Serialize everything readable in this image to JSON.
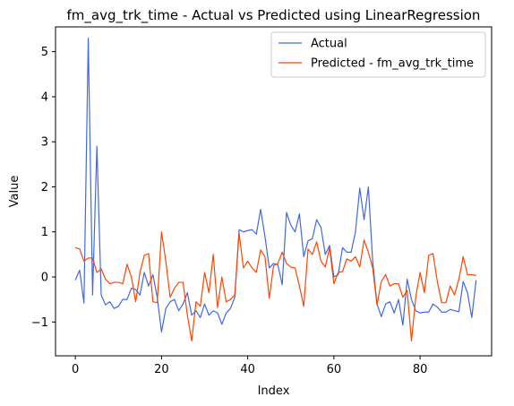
{
  "chart_data": {
    "type": "line",
    "title": "fm_avg_trk_time - Actual vs Predicted using LinearRegression",
    "xlabel": "Index",
    "ylabel": "Value",
    "xlim": [
      -4.6,
      96.6
    ],
    "ylim": [
      -1.75,
      5.55
    ],
    "xticks": [
      0,
      20,
      40,
      60,
      80
    ],
    "yticks": [
      -1,
      0,
      1,
      2,
      3,
      4,
      5
    ],
    "legend_position": "top-right",
    "series": [
      {
        "name": "Actual",
        "color": "#4169e1",
        "values": [
          -0.07,
          0.15,
          -0.58,
          5.3,
          -0.4,
          2.9,
          -0.4,
          -0.62,
          -0.55,
          -0.7,
          -0.65,
          -0.5,
          -0.5,
          -0.25,
          -0.28,
          -0.4,
          0.1,
          -0.2,
          0.05,
          -0.45,
          -1.22,
          -0.7,
          -0.55,
          -0.5,
          -0.75,
          -0.6,
          -0.35,
          -0.85,
          -0.75,
          -0.9,
          -0.6,
          -0.85,
          -0.75,
          -0.8,
          -1.05,
          -0.8,
          -0.7,
          -0.45,
          1.05,
          1.0,
          1.03,
          1.05,
          0.95,
          1.5,
          0.9,
          0.2,
          0.3,
          0.27,
          -0.17,
          1.43,
          1.15,
          1.0,
          1.4,
          0.45,
          0.8,
          0.85,
          1.27,
          1.1,
          0.5,
          0.7,
          0.0,
          0.05,
          0.65,
          0.55,
          0.55,
          1.0,
          1.97,
          1.27,
          2.0,
          0.35,
          -0.6,
          -0.88,
          -0.6,
          -0.55,
          -0.8,
          -0.5,
          -1.07,
          -0.05,
          -0.5,
          -0.75,
          -0.8,
          -0.78,
          -0.78,
          -0.6,
          -0.67,
          -0.78,
          -0.78,
          -0.72,
          -0.75,
          -0.77,
          -0.1,
          -0.35,
          -0.9,
          -0.07
        ]
      },
      {
        "name": "Predicted - fm_avg_trk_time",
        "color": "#ff4500",
        "values": [
          0.65,
          0.62,
          0.35,
          0.42,
          0.42,
          0.1,
          0.18,
          -0.05,
          -0.15,
          -0.12,
          -0.12,
          -0.15,
          0.28,
          0.0,
          -0.55,
          0.1,
          0.48,
          0.52,
          -0.55,
          -0.57,
          1.0,
          0.35,
          -0.45,
          -0.25,
          -0.12,
          -0.12,
          -0.85,
          -1.42,
          -0.55,
          -0.65,
          0.1,
          -0.35,
          0.5,
          -0.68,
          0.0,
          -0.55,
          -0.5,
          -0.4,
          0.97,
          0.2,
          0.35,
          0.2,
          0.1,
          0.6,
          0.45,
          -0.47,
          0.25,
          0.3,
          0.55,
          0.3,
          0.22,
          0.2,
          -0.2,
          -0.65,
          0.62,
          0.5,
          0.78,
          0.35,
          0.22,
          0.65,
          -0.15,
          0.1,
          0.12,
          0.4,
          0.35,
          0.45,
          0.22,
          0.82,
          0.55,
          0.2,
          -0.62,
          -0.1,
          0.05,
          -0.2,
          -0.15,
          -0.15,
          -0.45,
          -0.3,
          -1.42,
          -0.45,
          0.1,
          -0.35,
          0.48,
          0.52,
          -0.1,
          -0.57,
          -0.57,
          -0.2,
          -0.4,
          -0.05,
          0.45,
          0.05,
          0.05,
          0.03
        ]
      }
    ]
  }
}
